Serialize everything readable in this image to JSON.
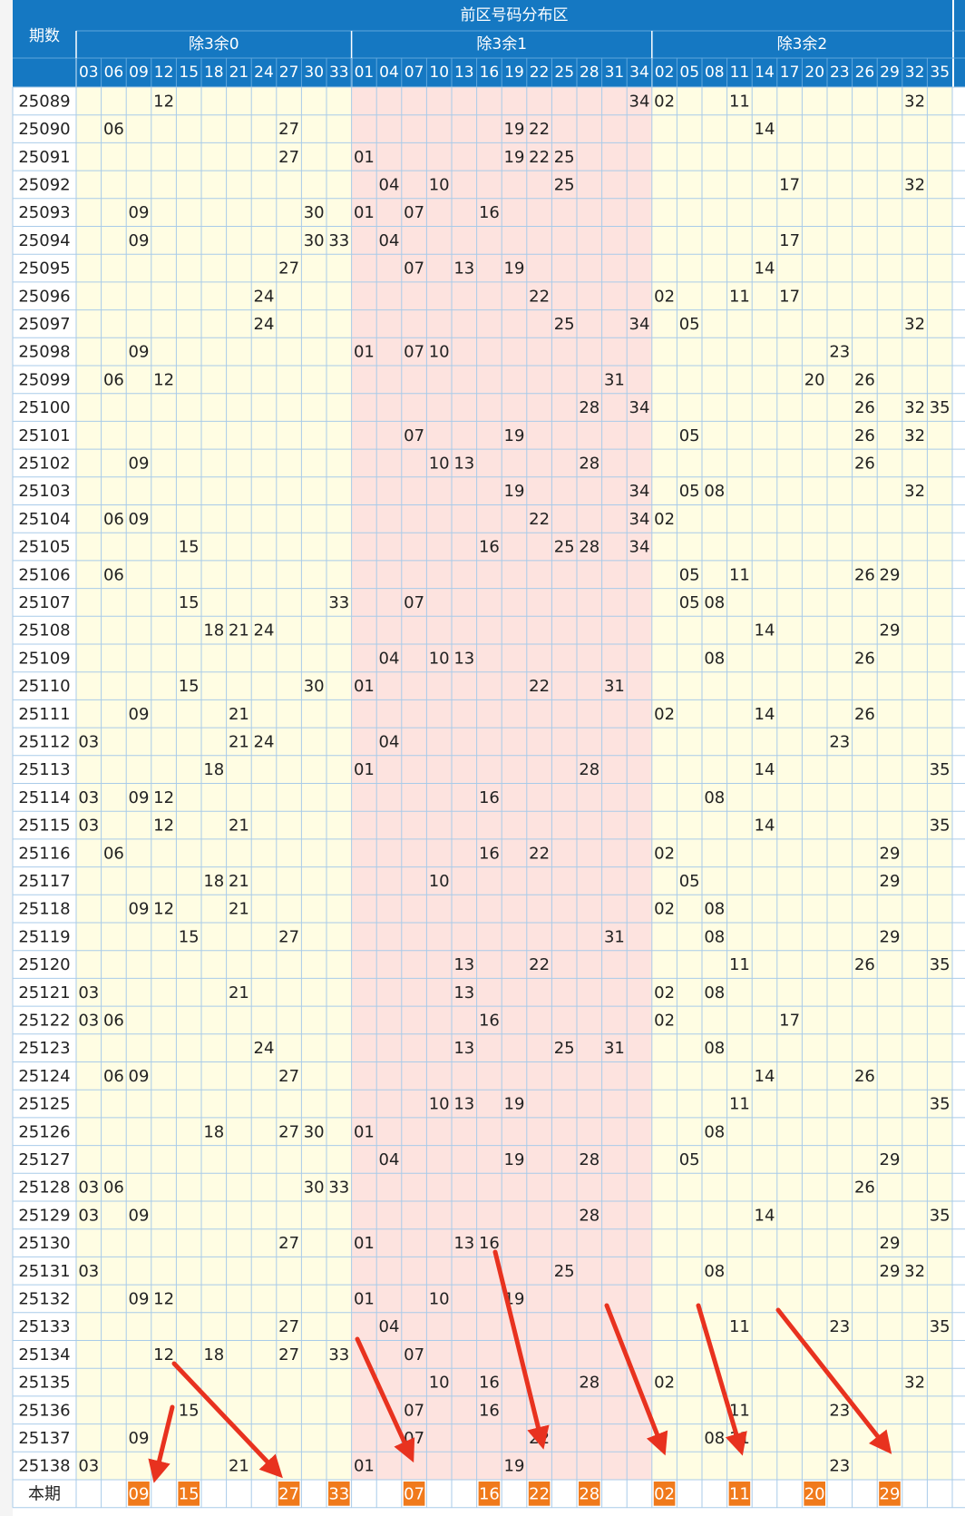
{
  "table": {
    "header": {
      "period_label": "期数",
      "zone": "前区号码分布区",
      "groups": [
        {
          "label": "除3余0",
          "numbers": [
            "03",
            "06",
            "09",
            "12",
            "15",
            "18",
            "21",
            "24",
            "27",
            "30",
            "33"
          ]
        },
        {
          "label": "除3余1",
          "numbers": [
            "01",
            "04",
            "07",
            "10",
            "13",
            "16",
            "19",
            "22",
            "25",
            "28",
            "31",
            "34"
          ]
        },
        {
          "label": "除3余2",
          "numbers": [
            "02",
            "05",
            "08",
            "11",
            "14",
            "17",
            "20",
            "23",
            "26",
            "29",
            "32",
            "35"
          ]
        }
      ]
    },
    "rows": [
      {
        "period": "25089",
        "numbers": [
          "12",
          "34",
          "02",
          "11",
          "32"
        ]
      },
      {
        "period": "25090",
        "numbers": [
          "06",
          "27",
          "19",
          "22",
          "14"
        ]
      },
      {
        "period": "25091",
        "numbers": [
          "27",
          "01",
          "19",
          "22",
          "25"
        ]
      },
      {
        "period": "25092",
        "numbers": [
          "04",
          "10",
          "25",
          "17",
          "32"
        ]
      },
      {
        "period": "25093",
        "numbers": [
          "09",
          "30",
          "01",
          "07",
          "16"
        ]
      },
      {
        "period": "25094",
        "numbers": [
          "09",
          "30",
          "33",
          "04",
          "17"
        ]
      },
      {
        "period": "25095",
        "numbers": [
          "27",
          "07",
          "13",
          "19",
          "14"
        ]
      },
      {
        "period": "25096",
        "numbers": [
          "24",
          "22",
          "02",
          "11",
          "17"
        ]
      },
      {
        "period": "25097",
        "numbers": [
          "24",
          "25",
          "34",
          "05",
          "32"
        ]
      },
      {
        "period": "25098",
        "numbers": [
          "09",
          "01",
          "07",
          "10",
          "23"
        ]
      },
      {
        "period": "25099",
        "numbers": [
          "06",
          "12",
          "31",
          "20",
          "26"
        ]
      },
      {
        "period": "25100",
        "numbers": [
          "28",
          "34",
          "26",
          "32",
          "35"
        ]
      },
      {
        "period": "25101",
        "numbers": [
          "07",
          "19",
          "05",
          "26",
          "32"
        ]
      },
      {
        "period": "25102",
        "numbers": [
          "09",
          "10",
          "13",
          "28",
          "26"
        ]
      },
      {
        "period": "25103",
        "numbers": [
          "19",
          "34",
          "05",
          "08",
          "32"
        ]
      },
      {
        "period": "25104",
        "numbers": [
          "06",
          "09",
          "22",
          "34",
          "02"
        ]
      },
      {
        "period": "25105",
        "numbers": [
          "15",
          "16",
          "25",
          "28",
          "34"
        ]
      },
      {
        "period": "25106",
        "numbers": [
          "06",
          "05",
          "11",
          "26",
          "29"
        ]
      },
      {
        "period": "25107",
        "numbers": [
          "15",
          "33",
          "07",
          "05",
          "08"
        ]
      },
      {
        "period": "25108",
        "numbers": [
          "18",
          "21",
          "24",
          "14",
          "29"
        ]
      },
      {
        "period": "25109",
        "numbers": [
          "04",
          "10",
          "13",
          "08",
          "26"
        ]
      },
      {
        "period": "25110",
        "numbers": [
          "15",
          "30",
          "01",
          "22",
          "31"
        ]
      },
      {
        "period": "25111",
        "numbers": [
          "09",
          "21",
          "02",
          "14",
          "26"
        ]
      },
      {
        "period": "25112",
        "numbers": [
          "03",
          "21",
          "24",
          "04",
          "23"
        ]
      },
      {
        "period": "25113",
        "numbers": [
          "18",
          "01",
          "28",
          "14",
          "35"
        ]
      },
      {
        "period": "25114",
        "numbers": [
          "03",
          "09",
          "12",
          "16",
          "08"
        ]
      },
      {
        "period": "25115",
        "numbers": [
          "03",
          "12",
          "21",
          "14",
          "35"
        ]
      },
      {
        "period": "25116",
        "numbers": [
          "06",
          "16",
          "22",
          "02",
          "29"
        ]
      },
      {
        "period": "25117",
        "numbers": [
          "18",
          "21",
          "10",
          "05",
          "29"
        ]
      },
      {
        "period": "25118",
        "numbers": [
          "09",
          "12",
          "21",
          "02",
          "08"
        ]
      },
      {
        "period": "25119",
        "numbers": [
          "15",
          "27",
          "31",
          "08",
          "29"
        ]
      },
      {
        "period": "25120",
        "numbers": [
          "13",
          "22",
          "11",
          "26",
          "35"
        ]
      },
      {
        "period": "25121",
        "numbers": [
          "03",
          "21",
          "13",
          "02",
          "08"
        ]
      },
      {
        "period": "25122",
        "numbers": [
          "03",
          "06",
          "16",
          "02",
          "17"
        ]
      },
      {
        "period": "25123",
        "numbers": [
          "24",
          "13",
          "25",
          "31",
          "08"
        ]
      },
      {
        "period": "25124",
        "numbers": [
          "06",
          "09",
          "27",
          "14",
          "26"
        ]
      },
      {
        "period": "25125",
        "numbers": [
          "10",
          "13",
          "19",
          "11",
          "35"
        ]
      },
      {
        "period": "25126",
        "numbers": [
          "18",
          "27",
          "30",
          "01",
          "08"
        ]
      },
      {
        "period": "25127",
        "numbers": [
          "04",
          "19",
          "28",
          "05",
          "29"
        ]
      },
      {
        "period": "25128",
        "numbers": [
          "03",
          "06",
          "30",
          "33",
          "26"
        ]
      },
      {
        "period": "25129",
        "numbers": [
          "03",
          "09",
          "28",
          "14",
          "35"
        ]
      },
      {
        "period": "25130",
        "numbers": [
          "27",
          "01",
          "13",
          "16",
          "29"
        ]
      },
      {
        "period": "25131",
        "numbers": [
          "03",
          "25",
          "08",
          "29",
          "32"
        ]
      },
      {
        "period": "25132",
        "numbers": [
          "09",
          "12",
          "01",
          "10",
          "19"
        ]
      },
      {
        "period": "25133",
        "numbers": [
          "27",
          "04",
          "11",
          "23",
          "35"
        ]
      },
      {
        "period": "25134",
        "numbers": [
          "12",
          "18",
          "27",
          "33",
          "07"
        ]
      },
      {
        "period": "25135",
        "numbers": [
          "10",
          "16",
          "28",
          "02",
          "32"
        ]
      },
      {
        "period": "25136",
        "numbers": [
          "15",
          "07",
          "16",
          "11",
          "23"
        ]
      },
      {
        "period": "25137",
        "numbers": [
          "09",
          "07",
          "22",
          "08",
          "11"
        ]
      },
      {
        "period": "25138",
        "numbers": [
          "03",
          "21",
          "01",
          "19",
          "23"
        ]
      }
    ],
    "current": {
      "label": "本期",
      "numbers": [
        "09",
        "15",
        "27",
        "33",
        "07",
        "16",
        "22",
        "28",
        "02",
        "11",
        "20",
        "29"
      ]
    }
  }
}
